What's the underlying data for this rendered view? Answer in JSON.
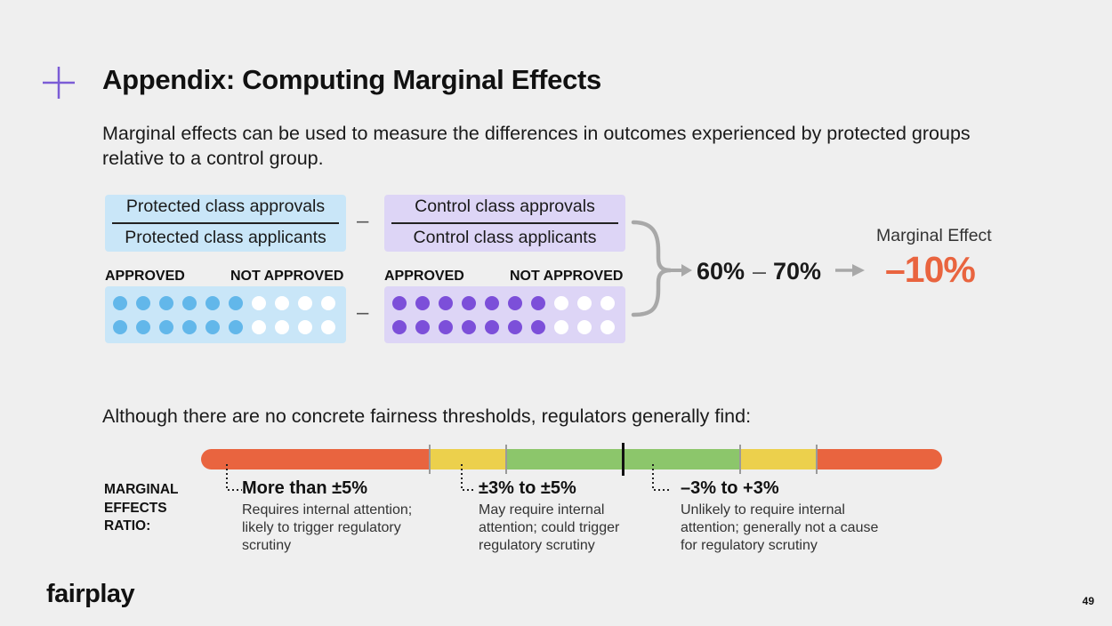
{
  "title": "Appendix: Computing Marginal Effects",
  "intro": "Marginal effects can be used to measure the differences in outcomes experienced by protected groups relative to a control group.",
  "protected": {
    "numerator": "Protected class approvals",
    "denominator": "Protected class applicants",
    "approved_label": "APPROVED",
    "not_approved_label": "NOT APPROVED",
    "approved_per_row": 6,
    "total_per_row": 10,
    "rows": 2
  },
  "control": {
    "numerator": "Control class approvals",
    "denominator": "Control class applicants",
    "approved_label": "APPROVED",
    "not_approved_label": "NOT APPROVED",
    "approved_per_row": 7,
    "total_per_row": 10,
    "rows": 2
  },
  "operator_minus": "–",
  "result": {
    "left": "60%",
    "dash": "–",
    "right": "70%",
    "label": "Marginal Effect",
    "value": "–10%"
  },
  "thresholds_intro": "Although there are no concrete fairness thresholds, regulators generally find:",
  "ratio_label_lines": [
    "MARGINAL",
    "EFFECTS",
    "RATIO:"
  ],
  "ranges": [
    {
      "heading": "More than ±5%",
      "description": "Requires internal attention; likely to trigger regulatory scrutiny"
    },
    {
      "heading": "±3% to ±5%",
      "description": "May require internal attention; could trigger regulatory scrutiny"
    },
    {
      "heading": "–3% to +3%",
      "description": "Unlikely to require internal attention; generally not a cause for regulatory scrutiny"
    }
  ],
  "brand": "fairplay",
  "page_number": "49",
  "colors": {
    "accent_purple": "#7b5cd6",
    "blue_box": "#c9e6f8",
    "blue_dot": "#62b7ea",
    "purple_box": "#ddd5f6",
    "purple_dot": "#7c4fd9",
    "orange": "#e9643f",
    "yellow": "#ecd04c",
    "green": "#8cc66b"
  }
}
